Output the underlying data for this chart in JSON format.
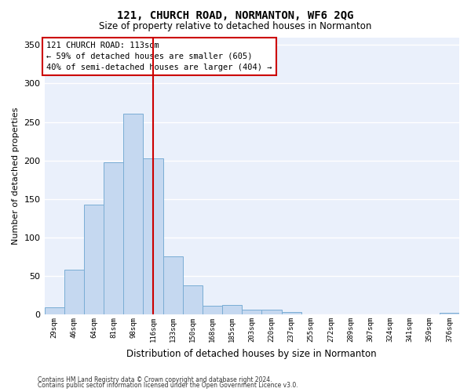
{
  "title": "121, CHURCH ROAD, NORMANTON, WF6 2QG",
  "subtitle": "Size of property relative to detached houses in Normanton",
  "xlabel": "Distribution of detached houses by size in Normanton",
  "ylabel": "Number of detached properties",
  "bar_color": "#c5d8f0",
  "bar_edge_color": "#7aadd4",
  "categories": [
    "29sqm",
    "46sqm",
    "64sqm",
    "81sqm",
    "98sqm",
    "116sqm",
    "133sqm",
    "150sqm",
    "168sqm",
    "185sqm",
    "203sqm",
    "220sqm",
    "237sqm",
    "255sqm",
    "272sqm",
    "289sqm",
    "307sqm",
    "324sqm",
    "341sqm",
    "359sqm",
    "376sqm"
  ],
  "values": [
    9,
    58,
    143,
    198,
    261,
    203,
    75,
    38,
    11,
    12,
    6,
    6,
    3,
    0,
    0,
    0,
    0,
    0,
    0,
    0,
    2
  ],
  "vline_x": 5,
  "vline_color": "#cc0000",
  "ylim": [
    0,
    360
  ],
  "yticks": [
    0,
    50,
    100,
    150,
    200,
    250,
    300,
    350
  ],
  "annotation_line1": "121 CHURCH ROAD: 113sqm",
  "annotation_line2": "← 59% of detached houses are smaller (605)",
  "annotation_line3": "40% of semi-detached houses are larger (404) →",
  "footer1": "Contains HM Land Registry data © Crown copyright and database right 2024.",
  "footer2": "Contains public sector information licensed under the Open Government Licence v3.0.",
  "background_color": "#eaf0fb",
  "grid_color": "#ffffff"
}
